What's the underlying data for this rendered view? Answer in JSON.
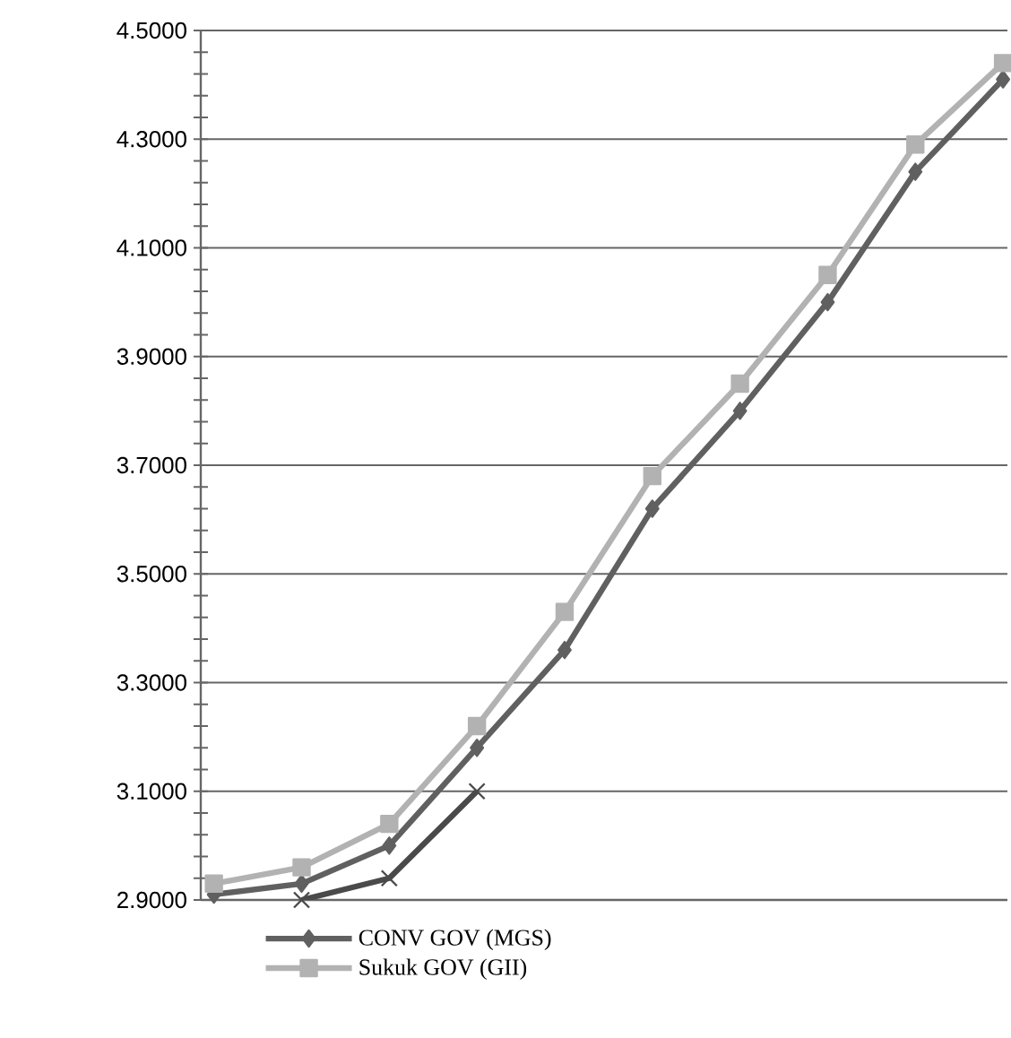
{
  "chart_data": {
    "type": "line",
    "series": [
      {
        "name": "CONV GOV (MGS)",
        "color": "#606060",
        "marker": "diamond",
        "values": [
          2.91,
          2.93,
          3.0,
          3.18,
          3.36,
          3.62,
          3.8,
          4.0,
          4.24,
          4.41
        ]
      },
      {
        "name": "Sukuk GOV (GII)",
        "color": "#b2b2b2",
        "marker": "square",
        "values": [
          2.93,
          2.96,
          3.04,
          3.22,
          3.43,
          3.68,
          3.85,
          4.05,
          4.29,
          4.44
        ]
      },
      {
        "color": "#4a4a4a",
        "marker": "cross",
        "values": [
          null,
          2.9,
          2.94,
          3.1,
          null,
          null,
          null,
          null,
          null,
          null
        ]
      }
    ],
    "categories": [
      null,
      null,
      null,
      null,
      null,
      null,
      null,
      null,
      null,
      null
    ],
    "ylim": [
      2.9,
      4.5
    ],
    "yticks": [
      {
        "value": 2.9,
        "label": "2.9000"
      },
      {
        "value": 3.1,
        "label": "3.1000"
      },
      {
        "value": 3.3,
        "label": "3.3000"
      },
      {
        "value": 3.5,
        "label": "3.5000"
      },
      {
        "value": 3.7,
        "label": "3.7000"
      },
      {
        "value": 3.9,
        "label": "3.9000"
      },
      {
        "value": 4.1,
        "label": "4.1000"
      },
      {
        "value": 4.3,
        "label": "4.3000"
      },
      {
        "value": 4.5,
        "label": "4.5000"
      }
    ],
    "tick_labels": "y",
    "grid": "y",
    "legend": "bottom",
    "line_style": "solid"
  }
}
